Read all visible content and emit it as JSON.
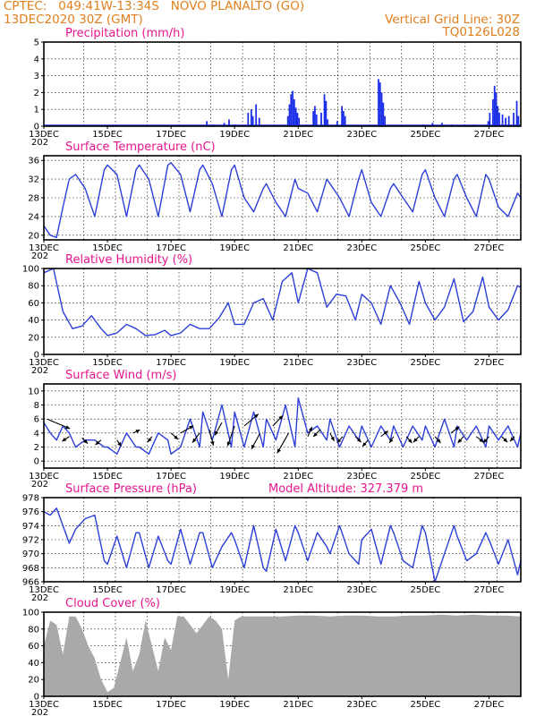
{
  "header": {
    "line1": "CPTEC:   049:41W-13:34S   NOVO PLANALTO (GO)",
    "line2": "13DEC2020 30Z (GMT)",
    "grid_note": "Vertical Grid Line: 30Z",
    "code": "TQ0126L028"
  },
  "colors": {
    "header": "#e07f1e",
    "title": "#e6158c",
    "line": "#2c3fd8",
    "bar": "#1a2ee8",
    "cloud": "#a9a9a9",
    "arrow": "#000000"
  },
  "x_axis": {
    "start_day": 13,
    "end_day": 28,
    "tick_labels": [
      "13DEC",
      "15DEC",
      "17DEC",
      "19DEC",
      "21DEC",
      "23DEC",
      "25DEC",
      "27DEC"
    ],
    "tick_days": [
      13,
      15,
      17,
      19,
      21,
      23,
      25,
      27
    ],
    "cut_label": "202"
  },
  "chart_data": [
    {
      "type": "bar",
      "title": "Precipitation (mm/h)",
      "ylim": [
        0,
        5
      ],
      "yticks": [
        0,
        1,
        2,
        3,
        4,
        5
      ],
      "events": [
        [
          18.1,
          0.3
        ],
        [
          18.3,
          0.1
        ],
        [
          18.65,
          0.2
        ],
        [
          18.8,
          0.4
        ],
        [
          19.0,
          0.1
        ],
        [
          19.4,
          0.8
        ],
        [
          19.5,
          1.0
        ],
        [
          19.55,
          0.6
        ],
        [
          19.65,
          1.3
        ],
        [
          19.75,
          0.5
        ],
        [
          20.65,
          0.6
        ],
        [
          20.7,
          1.3
        ],
        [
          20.75,
          1.9
        ],
        [
          20.8,
          2.1
        ],
        [
          20.85,
          1.6
        ],
        [
          20.9,
          1.1
        ],
        [
          20.95,
          0.8
        ],
        [
          21.0,
          0.5
        ],
        [
          21.45,
          0.9
        ],
        [
          21.5,
          1.2
        ],
        [
          21.55,
          0.7
        ],
        [
          21.7,
          0.8
        ],
        [
          21.8,
          1.9
        ],
        [
          21.85,
          1.5
        ],
        [
          21.9,
          0.4
        ],
        [
          22.2,
          0.3
        ],
        [
          22.35,
          1.2
        ],
        [
          22.4,
          0.9
        ],
        [
          22.45,
          0.6
        ],
        [
          23.5,
          2.8
        ],
        [
          23.55,
          2.6
        ],
        [
          23.6,
          2.0
        ],
        [
          23.65,
          1.4
        ],
        [
          23.7,
          0.6
        ],
        [
          24.9,
          0.1
        ],
        [
          25.2,
          0.2
        ],
        [
          25.5,
          0.2
        ],
        [
          25.8,
          0.1
        ],
        [
          26.2,
          0.1
        ],
        [
          26.5,
          0.1
        ],
        [
          26.95,
          0.3
        ],
        [
          27.0,
          0.8
        ],
        [
          27.1,
          1.6
        ],
        [
          27.15,
          2.4
        ],
        [
          27.2,
          2.0
        ],
        [
          27.25,
          1.2
        ],
        [
          27.3,
          0.8
        ],
        [
          27.4,
          0.7
        ],
        [
          27.5,
          0.5
        ],
        [
          27.6,
          0.6
        ],
        [
          27.75,
          0.8
        ],
        [
          27.85,
          1.5
        ],
        [
          27.9,
          0.6
        ]
      ]
    },
    {
      "type": "line",
      "title": "Surface Temperature (nC)",
      "ylim": [
        19,
        37
      ],
      "yticks": [
        20,
        24,
        28,
        32,
        36
      ],
      "x": [
        13.0,
        13.2,
        13.4,
        13.6,
        13.8,
        14.0,
        14.3,
        14.6,
        14.9,
        15.0,
        15.3,
        15.6,
        15.9,
        16.0,
        16.3,
        16.6,
        16.9,
        17.0,
        17.3,
        17.6,
        17.9,
        18.0,
        18.3,
        18.6,
        18.9,
        19.0,
        19.3,
        19.6,
        19.9,
        20.0,
        20.3,
        20.6,
        20.9,
        21.0,
        21.3,
        21.6,
        21.9,
        22.0,
        22.3,
        22.6,
        22.9,
        23.0,
        23.3,
        23.6,
        23.9,
        24.0,
        24.3,
        24.6,
        24.9,
        25.0,
        25.3,
        25.6,
        25.9,
        26.0,
        26.3,
        26.6,
        26.9,
        27.0,
        27.3,
        27.6,
        27.9,
        28.0
      ],
      "y": [
        22,
        20,
        19.5,
        26,
        32,
        33,
        30,
        24,
        34,
        35,
        33,
        24,
        34,
        35,
        32,
        24,
        35,
        35.5,
        33,
        25,
        34,
        35,
        31,
        24,
        34,
        35,
        28,
        25,
        30,
        31,
        27,
        24,
        32,
        30,
        29,
        25,
        32,
        31,
        28,
        24,
        32,
        34,
        27,
        24,
        30,
        31,
        28,
        25,
        33,
        34,
        28,
        24,
        32,
        33,
        28,
        24,
        33,
        32,
        26,
        24,
        29,
        28
      ]
    },
    {
      "type": "line",
      "title": "Relative Humidity (%)",
      "ylim": [
        0,
        100
      ],
      "yticks": [
        0,
        20,
        40,
        60,
        80,
        100
      ],
      "x": [
        13.0,
        13.3,
        13.6,
        13.9,
        14.2,
        14.5,
        14.8,
        15.0,
        15.3,
        15.6,
        15.9,
        16.2,
        16.5,
        16.8,
        17.0,
        17.3,
        17.6,
        17.9,
        18.2,
        18.5,
        18.8,
        19.0,
        19.3,
        19.6,
        19.9,
        20.2,
        20.5,
        20.8,
        21.0,
        21.3,
        21.6,
        21.9,
        22.2,
        22.5,
        22.8,
        23.0,
        23.3,
        23.6,
        23.9,
        24.2,
        24.5,
        24.8,
        25.0,
        25.3,
        25.6,
        25.9,
        26.2,
        26.5,
        26.8,
        27.0,
        27.3,
        27.6,
        27.9,
        28.0
      ],
      "y": [
        95,
        100,
        50,
        30,
        33,
        45,
        30,
        22,
        25,
        35,
        30,
        22,
        23,
        28,
        22,
        25,
        35,
        30,
        30,
        42,
        60,
        35,
        35,
        60,
        65,
        40,
        85,
        95,
        60,
        100,
        95,
        55,
        70,
        68,
        40,
        70,
        60,
        35,
        80,
        60,
        35,
        85,
        60,
        40,
        55,
        88,
        38,
        50,
        90,
        55,
        40,
        52,
        80,
        78
      ]
    },
    {
      "type": "line",
      "title": "Surface Wind (m/s)",
      "ylim": [
        -1,
        11
      ],
      "yticks": [
        0,
        2,
        4,
        6,
        8,
        10
      ],
      "x": [
        13.0,
        13.2,
        13.4,
        13.6,
        13.8,
        14.0,
        14.3,
        14.6,
        14.9,
        15.0,
        15.3,
        15.6,
        15.9,
        16.0,
        16.3,
        16.6,
        16.9,
        17.0,
        17.3,
        17.6,
        17.9,
        18.0,
        18.3,
        18.6,
        18.9,
        19.0,
        19.3,
        19.6,
        19.9,
        20.0,
        20.3,
        20.6,
        20.9,
        21.0,
        21.3,
        21.6,
        21.9,
        22.0,
        22.3,
        22.6,
        22.9,
        23.0,
        23.3,
        23.6,
        23.9,
        24.0,
        24.3,
        24.6,
        24.9,
        25.0,
        25.3,
        25.6,
        25.9,
        26.0,
        26.3,
        26.6,
        26.9,
        27.0,
        27.3,
        27.6,
        27.9,
        28.0
      ],
      "y": [
        5.5,
        4,
        3,
        5,
        4,
        2,
        3,
        3,
        2,
        2,
        1,
        4,
        2,
        2,
        1,
        4,
        3,
        1,
        2,
        6,
        2,
        7,
        3,
        8,
        2,
        7,
        2,
        7,
        2,
        6,
        3,
        8,
        2,
        9,
        4,
        5,
        3,
        6,
        2,
        5,
        3,
        5,
        2,
        5,
        3,
        5,
        2,
        5,
        3,
        5,
        2,
        6,
        2,
        5,
        3,
        5,
        2,
        5,
        3,
        5,
        2,
        4
      ],
      "arrows": [
        [
          13.1,
          6,
          1.6,
          -1.2
        ],
        [
          13.8,
          3.5,
          -0.5,
          -0.6
        ],
        [
          14.2,
          3.3,
          0.4,
          -0.7
        ],
        [
          14.8,
          3,
          -0.4,
          -0.6
        ],
        [
          15.3,
          3,
          0.3,
          -0.8
        ],
        [
          15.8,
          4,
          0.5,
          0.4
        ],
        [
          16.4,
          3.5,
          -0.3,
          -0.7
        ],
        [
          17.0,
          4,
          0.5,
          -0.8
        ],
        [
          17.3,
          4,
          0.9,
          0.9
        ],
        [
          17.9,
          4,
          -0.5,
          -1.2
        ],
        [
          18.2,
          4.5,
          0.3,
          -2
        ],
        [
          18.6,
          5.5,
          -0.5,
          -1.6
        ],
        [
          19.0,
          5,
          -0.5,
          -2.5
        ],
        [
          19.3,
          5,
          1.0,
          1.5
        ],
        [
          19.8,
          4,
          -0.6,
          -2
        ],
        [
          20.2,
          5,
          0.7,
          1.3
        ],
        [
          20.7,
          4,
          -0.8,
          -2.5
        ],
        [
          21.3,
          3.5,
          0.3,
          1.2
        ],
        [
          21.7,
          4.5,
          -0.5,
          -0.9
        ],
        [
          22.0,
          4,
          0.3,
          -1
        ],
        [
          22.4,
          3.5,
          -0.4,
          -0.8
        ],
        [
          22.8,
          3.5,
          0.4,
          -0.7
        ],
        [
          23.2,
          3,
          -0.4,
          -0.8
        ],
        [
          23.6,
          3.5,
          0.5,
          0.7
        ],
        [
          24.0,
          3.5,
          -0.3,
          -0.8
        ],
        [
          24.4,
          3.5,
          0.4,
          -0.8
        ],
        [
          24.8,
          3.5,
          -0.4,
          -0.7
        ],
        [
          25.3,
          3.5,
          0.4,
          -0.8
        ],
        [
          25.8,
          4,
          0.6,
          0.8
        ],
        [
          26.2,
          3.5,
          -0.4,
          -0.8
        ],
        [
          26.6,
          3.5,
          0.5,
          -0.7
        ],
        [
          27.0,
          3.5,
          -0.4,
          -0.8
        ],
        [
          27.4,
          3.5,
          0.4,
          -0.7
        ],
        [
          27.8,
          3.5,
          -0.3,
          -0.6
        ]
      ]
    },
    {
      "type": "line",
      "title": "Surface Pressure (hPa)",
      "subtitle": "Model Altitude: 327.379 m",
      "ylim": [
        966,
        978
      ],
      "yticks": [
        966,
        968,
        970,
        972,
        974,
        976,
        978
      ],
      "x": [
        13.0,
        13.2,
        13.4,
        13.6,
        13.8,
        14.0,
        14.3,
        14.6,
        14.9,
        15.0,
        15.3,
        15.6,
        15.9,
        16.0,
        16.3,
        16.6,
        16.9,
        17.0,
        17.3,
        17.6,
        17.9,
        18.0,
        18.3,
        18.6,
        18.9,
        19.0,
        19.3,
        19.6,
        19.9,
        20.0,
        20.3,
        20.6,
        20.9,
        21.0,
        21.3,
        21.6,
        21.9,
        22.0,
        22.3,
        22.6,
        22.9,
        23.0,
        23.3,
        23.6,
        23.9,
        24.0,
        24.3,
        24.6,
        24.9,
        25.0,
        25.3,
        25.6,
        25.9,
        26.0,
        26.3,
        26.6,
        26.9,
        27.0,
        27.3,
        27.6,
        27.9,
        28.0
      ],
      "y": [
        976,
        975.5,
        976.5,
        974,
        971.5,
        973.5,
        975,
        975.5,
        969,
        968.5,
        972.5,
        968,
        973,
        973,
        968,
        972.5,
        969,
        968.5,
        973.5,
        968.5,
        973,
        973,
        968,
        971,
        973,
        972,
        968,
        974,
        968,
        967.5,
        973.5,
        969,
        974,
        973,
        969,
        973,
        971,
        970,
        974,
        970,
        968.5,
        972,
        973.5,
        968.5,
        974,
        973,
        969,
        968,
        974,
        973,
        966,
        970,
        974,
        972.5,
        969,
        970,
        973,
        972,
        968.5,
        972,
        967,
        969
      ]
    },
    {
      "type": "area",
      "title": "Cloud Cover (%)",
      "ylim": [
        0,
        100
      ],
      "yticks": [
        0,
        20,
        40,
        60,
        80,
        100
      ],
      "x": [
        13.0,
        13.2,
        13.4,
        13.6,
        13.8,
        14.0,
        14.2,
        14.4,
        14.6,
        14.8,
        15.0,
        15.2,
        15.4,
        15.6,
        15.8,
        16.0,
        16.2,
        16.4,
        16.6,
        16.8,
        17.0,
        17.2,
        17.4,
        17.6,
        17.8,
        18.0,
        18.2,
        18.4,
        18.6,
        18.8,
        19.0,
        19.2,
        19.5,
        20.0,
        20.5,
        21.0,
        21.5,
        22.0,
        22.5,
        23.0,
        23.5,
        24.0,
        24.5,
        25.0,
        25.5,
        26.0,
        26.5,
        27.0,
        27.5,
        28.0
      ],
      "y": [
        60,
        90,
        85,
        50,
        95,
        95,
        80,
        60,
        45,
        20,
        5,
        10,
        40,
        70,
        30,
        50,
        90,
        60,
        30,
        70,
        55,
        95,
        95,
        85,
        75,
        85,
        95,
        90,
        80,
        20,
        90,
        95,
        95,
        95,
        95,
        96,
        96,
        95,
        96,
        96,
        95,
        95,
        96,
        96,
        97,
        96,
        97,
        96,
        96,
        95
      ]
    }
  ]
}
